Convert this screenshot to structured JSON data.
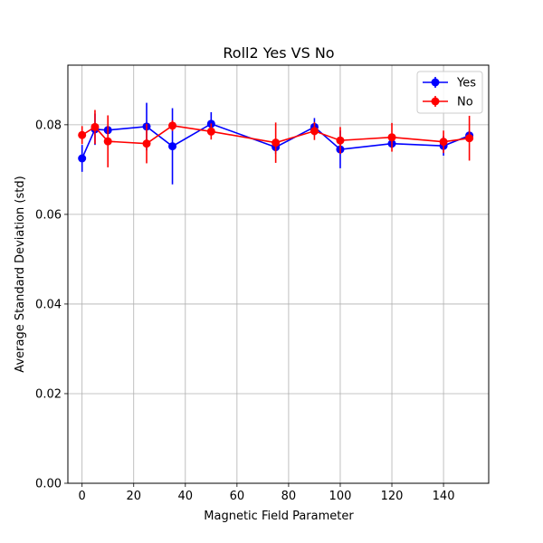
{
  "chart_data": {
    "type": "line",
    "title": "Roll2 Yes VS No",
    "xlabel": "Magnetic Field Parameter",
    "ylabel": "Average Standard Deviation (std)",
    "xlim": [
      -5.5,
      157.5
    ],
    "ylim": [
      0.0,
      0.0933
    ],
    "xticks": [
      0,
      20,
      40,
      60,
      80,
      100,
      120,
      140
    ],
    "xtick_labels": [
      "0",
      "20",
      "40",
      "60",
      "80",
      "100",
      "120",
      "140"
    ],
    "yticks": [
      0.0,
      0.02,
      0.04,
      0.06,
      0.08
    ],
    "ytick_labels": [
      "0.00",
      "0.02",
      "0.04",
      "0.06",
      "0.08"
    ],
    "grid": true,
    "legend_position": "top-right",
    "series": [
      {
        "name": "Yes",
        "color": "#0000ff",
        "x": [
          0,
          5,
          10,
          25,
          35,
          50,
          75,
          90,
          100,
          120,
          140,
          150
        ],
        "y": [
          0.0725,
          0.079,
          0.0788,
          0.0796,
          0.0752,
          0.0802,
          0.075,
          0.0795,
          0.0745,
          0.0758,
          0.0753,
          0.0776
        ],
        "err": [
          0.003,
          0.0035,
          0.001,
          0.0053,
          0.0085,
          0.0026,
          0.0015,
          0.002,
          0.0042,
          0.001,
          0.0022,
          0.001
        ]
      },
      {
        "name": "No",
        "color": "#ff0000",
        "x": [
          0,
          5,
          10,
          25,
          35,
          50,
          75,
          90,
          100,
          120,
          140,
          150
        ],
        "y": [
          0.0777,
          0.0795,
          0.0763,
          0.0758,
          0.0798,
          0.0785,
          0.076,
          0.0786,
          0.0765,
          0.0772,
          0.0762,
          0.077
        ],
        "err": [
          0.002,
          0.0038,
          0.0058,
          0.0044,
          0.0012,
          0.0018,
          0.0045,
          0.002,
          0.003,
          0.0032,
          0.0025,
          0.005
        ]
      }
    ]
  }
}
